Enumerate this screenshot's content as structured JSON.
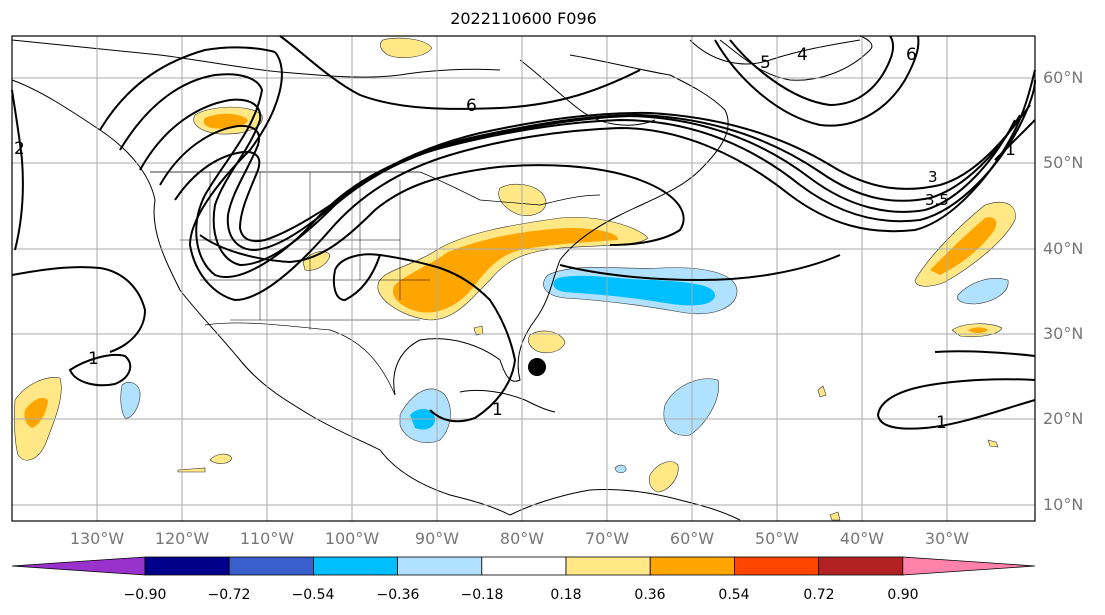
{
  "title": "2022110600 F096",
  "lat_labels": [
    "60°N",
    "50°N",
    "40°N",
    "30°N",
    "20°N",
    "10°N"
  ],
  "lon_labels": [
    "130°W",
    "120°W",
    "110°W",
    "100°W",
    "90°W",
    "80°W",
    "70°W",
    "60°W",
    "50°W",
    "40°W",
    "30°W"
  ],
  "contour_labels": [
    "6",
    "4",
    "5",
    "6",
    "1",
    "3.5",
    "3",
    "2",
    "1",
    "1",
    "1"
  ],
  "colorbar": {
    "ticks": [
      "−0.90",
      "−0.72",
      "−0.54",
      "−0.36",
      "−0.18",
      "0.18",
      "0.36",
      "0.54",
      "0.72",
      "0.90"
    ],
    "colors": [
      "#9932cc",
      "#00008b",
      "#3a5fcd",
      "#00bfff",
      "#b0e2ff",
      "#ffffff",
      "#ffe885",
      "#ffa500",
      "#ff4500",
      "#b22222",
      "#ff82ab"
    ]
  }
}
